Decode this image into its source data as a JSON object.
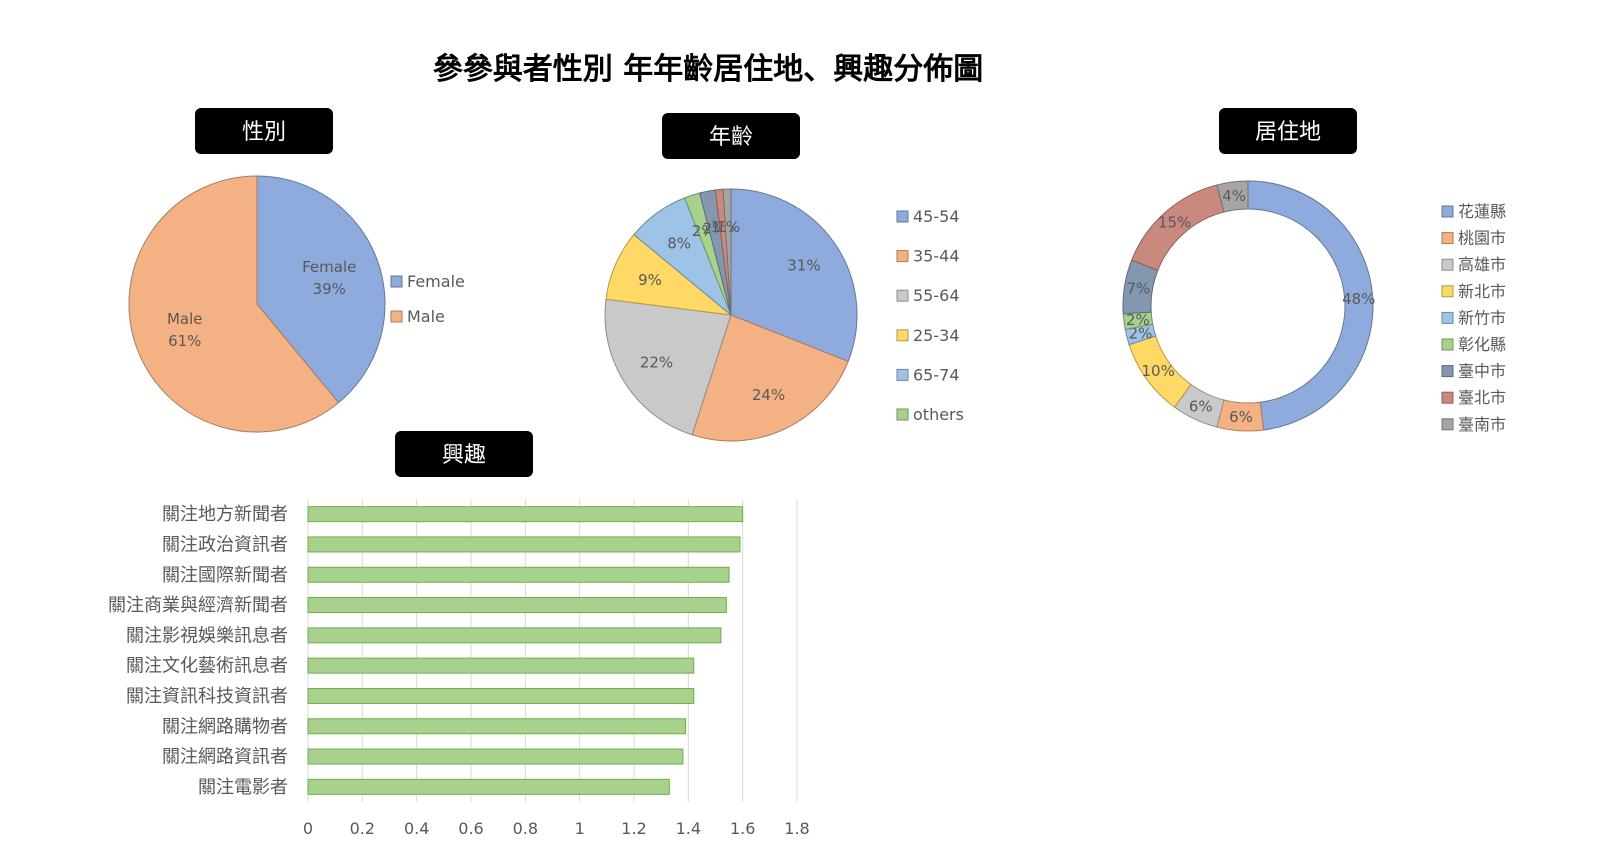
{
  "title": "參參與者性別 年年齡居住地、興趣分佈圖",
  "chart_data": [
    {
      "type": "pie",
      "title": "性別",
      "categories": [
        "Female",
        "Male"
      ],
      "values": [
        39,
        61
      ],
      "labels": [
        "Female\n39%",
        "Male\n61%"
      ],
      "colors": [
        "#8faadc",
        "#f4b183"
      ],
      "legend": [
        "Female",
        "Male"
      ],
      "legend_position": "right"
    },
    {
      "type": "pie",
      "title": "年齡",
      "categories": [
        "45-54",
        "35-44",
        "55-64",
        "25-34",
        "65-74",
        "others",
        "",
        "",
        ""
      ],
      "values": [
        31,
        24,
        22,
        9,
        8,
        2,
        2,
        1,
        1
      ],
      "labels": [
        "31%",
        "24%",
        "22%",
        "9%",
        "8%",
        "2%",
        "2%",
        "1%",
        "1%"
      ],
      "colors": [
        "#8faadc",
        "#f4b183",
        "#c9c9c9",
        "#ffd966",
        "#9dc3e6",
        "#a9d18e",
        "#8497b0",
        "#c9897f",
        "#a5a5a5"
      ],
      "legend": [
        "45-54",
        "35-44",
        "55-64",
        "25-34",
        "65-74",
        "others"
      ],
      "legend_position": "right"
    },
    {
      "type": "pie",
      "title": "居住地",
      "categories": [
        "花蓮縣",
        "桃園市",
        "高雄市",
        "新北市",
        "新竹市",
        "彰化縣",
        "臺中市",
        "臺北市",
        "臺南市"
      ],
      "values": [
        48,
        6,
        6,
        10,
        2,
        2,
        7,
        15,
        4
      ],
      "labels": [
        "48%",
        "6%",
        "6%",
        "10%",
        "2%",
        "2%",
        "7%",
        "15%",
        "4%"
      ],
      "colors": [
        "#8faadc",
        "#f4b183",
        "#c9c9c9",
        "#ffd966",
        "#9dc3e6",
        "#a9d18e",
        "#8497b0",
        "#c9897f",
        "#a5a5a5"
      ],
      "legend": [
        "花蓮縣",
        "桃園市",
        "高雄市",
        "新北市",
        "新竹市",
        "彰化縣",
        "臺中市",
        "臺北市",
        "臺南市"
      ],
      "legend_position": "right"
    },
    {
      "type": "bar",
      "orientation": "horizontal",
      "title": "興趣",
      "categories": [
        "關注地方新聞者",
        "關注政治資訊者",
        "關注國際新聞者",
        "關注商業與經濟新聞者",
        "關注影視娛樂訊息者",
        "關注文化藝術訊息者",
        "關注資訊科技資訊者",
        "關注網路購物者",
        "關注網路資訊者",
        "關注電影者"
      ],
      "values": [
        1.6,
        1.59,
        1.55,
        1.54,
        1.52,
        1.42,
        1.42,
        1.39,
        1.38,
        1.33
      ],
      "xlim": [
        0,
        1.8
      ],
      "ticks": [
        "0",
        "0.2",
        "0.4",
        "0.6",
        "0.8",
        "1",
        "1.2",
        "1.4",
        "1.6",
        "1.8"
      ],
      "color": "#a9d18e",
      "grid": true
    }
  ]
}
